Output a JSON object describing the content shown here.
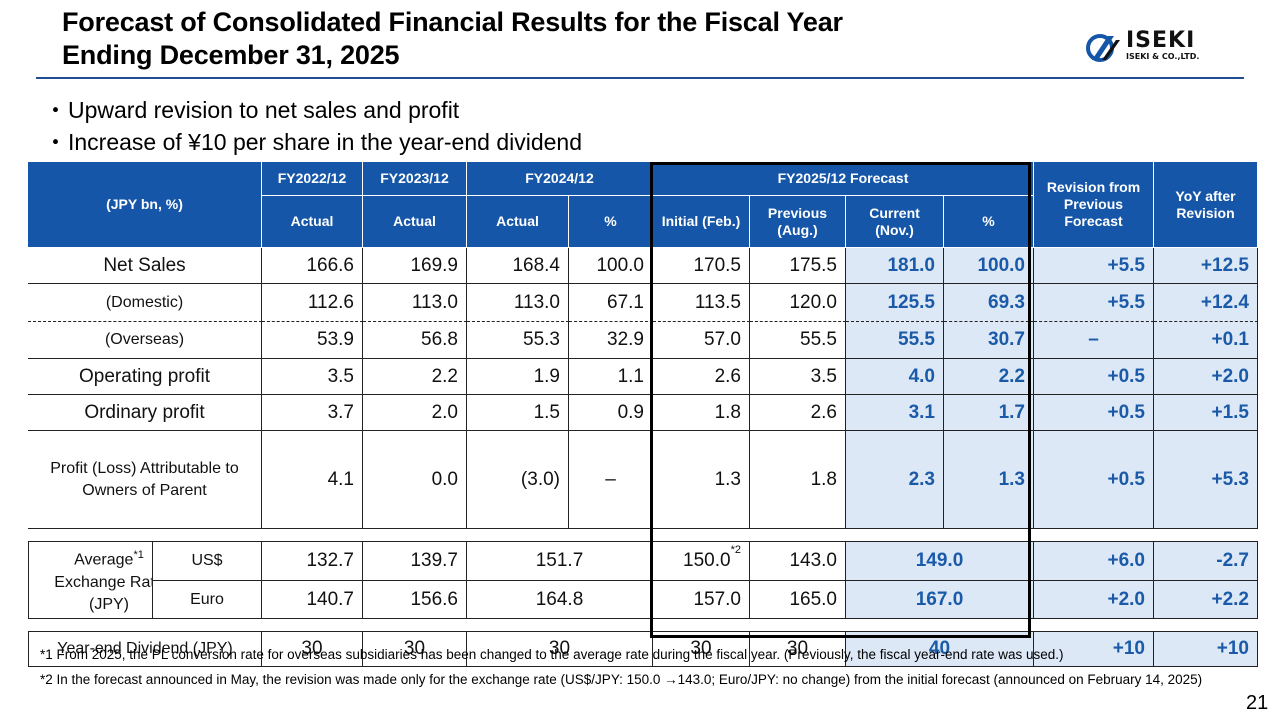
{
  "header": {
    "title_line1": "Forecast of Consolidated Financial Results for the Fiscal Year",
    "title_line2": "Ending December 31, 2025",
    "logo_name": "ISEKI",
    "logo_sub": "ISEKI & CO.,LTD."
  },
  "bullets": [
    "Upward revision to net sales and profit",
    "Increase of ¥10 per share in the year-end dividend"
  ],
  "table": {
    "unit_label": "(JPY bn, %)",
    "fy2022": "FY2022/12",
    "fy2023": "FY2023/12",
    "fy2024": "FY2024/12",
    "fy2025": "FY2025/12 Forecast",
    "revision_col": "Revision from Previous Forecast",
    "yoy_col": "YoY after Revision",
    "actual": "Actual",
    "pct": "%",
    "initial": "Initial (Feb.)",
    "previous": "Previous (Aug.)",
    "current": "Current (Nov.)"
  },
  "rows": {
    "net_sales": {
      "label": "Net Sales",
      "v": [
        "166.6",
        "169.9",
        "168.4",
        "100.0",
        "170.5",
        "175.5",
        "181.0",
        "100.0",
        "+5.5",
        "+12.5"
      ]
    },
    "domestic": {
      "label": "(Domestic)",
      "v": [
        "112.6",
        "113.0",
        "113.0",
        "67.1",
        "113.5",
        "120.0",
        "125.5",
        "69.3",
        "+5.5",
        "+12.4"
      ]
    },
    "overseas": {
      "label": "(Overseas)",
      "v": [
        "53.9",
        "56.8",
        "55.3",
        "32.9",
        "57.0",
        "55.5",
        "55.5",
        "30.7",
        "–",
        "+0.1"
      ]
    },
    "operating": {
      "label": "Operating profit",
      "v": [
        "3.5",
        "2.2",
        "1.9",
        "1.1",
        "2.6",
        "3.5",
        "4.0",
        "2.2",
        "+0.5",
        "+2.0"
      ]
    },
    "ordinary": {
      "label": "Ordinary profit",
      "v": [
        "3.7",
        "2.0",
        "1.5",
        "0.9",
        "1.8",
        "2.6",
        "3.1",
        "1.7",
        "+0.5",
        "+1.5"
      ]
    },
    "profit_parent": {
      "label": "Profit (Loss) Attributable to Owners of Parent",
      "v": [
        "4.1",
        "0.0",
        "(3.0)",
        "–",
        "1.3",
        "1.8",
        "2.3",
        "1.3",
        "+0.5",
        "+5.3"
      ]
    }
  },
  "fx": {
    "label": "Average",
    "label_rest": "Exchange Rate (JPY)",
    "label_note": "*1",
    "usd": {
      "label": "US$",
      "fy22": "132.7",
      "fy23": "139.7",
      "fy24": "151.7",
      "initial": "150.0",
      "initial_note": "*2",
      "previous": "143.0",
      "current": "149.0",
      "rev": "+6.0",
      "yoy": "-2.7"
    },
    "eur": {
      "label": "Euro",
      "fy22": "140.7",
      "fy23": "156.6",
      "fy24": "164.8",
      "initial": "157.0",
      "previous": "165.0",
      "current": "167.0",
      "rev": "+2.0",
      "yoy": "+2.2"
    }
  },
  "dividend": {
    "label": "Year-end Dividend (JPY)",
    "fy22": "30",
    "fy23": "30",
    "fy24": "30",
    "initial": "30",
    "previous": "30",
    "current": "40",
    "rev": "+10",
    "yoy": "+10"
  },
  "notes": {
    "note1": "*1 From 2025, the PL conversion rate for overseas subsidiaries has been changed to the average rate during the fiscal year. (Previously, the fiscal year-end rate was used.)",
    "note2": "*2 In the forecast announced in May, the revision was made only for the exchange rate (US$/JPY: 150.0 →143.0; Euro/JPY: no change) from the initial forecast (announced on February 14, 2025)"
  },
  "page_number": "21",
  "colors": {
    "header_blue": "#1556a8",
    "highlight_bg": "#dde8f6",
    "highlight_text": "#1a5aa8"
  }
}
